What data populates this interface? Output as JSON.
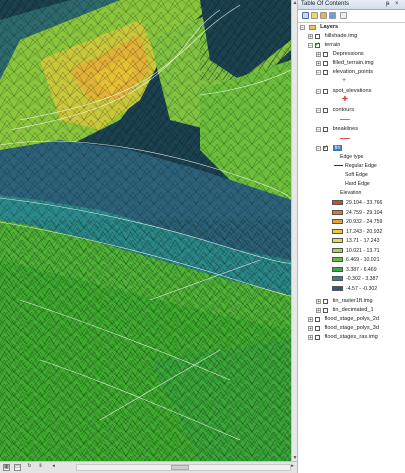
{
  "toc": {
    "title": "Table Of Contents",
    "pin": "ᵽ",
    "close": "×",
    "tools": [
      "list-by-drawing-order-icon",
      "list-by-source-icon",
      "list-by-visibility-icon",
      "list-by-selection-icon",
      "options-icon"
    ]
  },
  "layers": {
    "root_label": "Layers",
    "hillshade": "hillshade.img",
    "terrain": "terrain",
    "depressions": "Depressions",
    "filled_terrain": "filled_terrain.img",
    "elevation_points": "elevation_points",
    "spot_elevations": "spot_elevations",
    "contours": "contours",
    "breaklines": "breaklines",
    "tin": "tin",
    "edge_type_heading": "Edge type",
    "edge_types": [
      {
        "label": "Regular Edge",
        "color": "#333333"
      },
      {
        "label": "Soft Edge",
        "color": "#ffffff"
      },
      {
        "label": "Hard Edge",
        "color": "#ffffff"
      }
    ],
    "elevation_heading": "Elevation",
    "elevation_classes": [
      {
        "label": "29.104 - 33.766",
        "color": "#d24a2a"
      },
      {
        "label": "24.759 - 29.104",
        "color": "#e2772a"
      },
      {
        "label": "20.932 - 24.759",
        "color": "#e8a030"
      },
      {
        "label": "17.243 - 20.932",
        "color": "#f0c832"
      },
      {
        "label": "13.71 - 17.243",
        "color": "#e6df3c"
      },
      {
        "label": "10.021 - 13.71",
        "color": "#a8d63a"
      },
      {
        "label": "6.469 - 10.021",
        "color": "#5cc03a"
      },
      {
        "label": "3.387 - 6.469",
        "color": "#38a84a"
      },
      {
        "label": "-0.302 - 3.387",
        "color": "#2a8a8a"
      },
      {
        "label": "-4.57 - -0.302",
        "color": "#2a5a8a"
      }
    ],
    "tin_raster": "tin_raster1ft.img",
    "tin_decimated": "tin_decimated_1",
    "flood_2d": "flood_stage_polys_2d",
    "flood_3d": "flood_stage_polys_3d",
    "flood_ras": "flood_stages_ras.img"
  },
  "colors": {
    "bg_dark": "#1a3a45",
    "water_blue": "#2c5f73",
    "green_low": "#3fae2e",
    "green_mid": "#5cc03a",
    "yellow": "#e6df3c",
    "orange": "#e8a030"
  }
}
